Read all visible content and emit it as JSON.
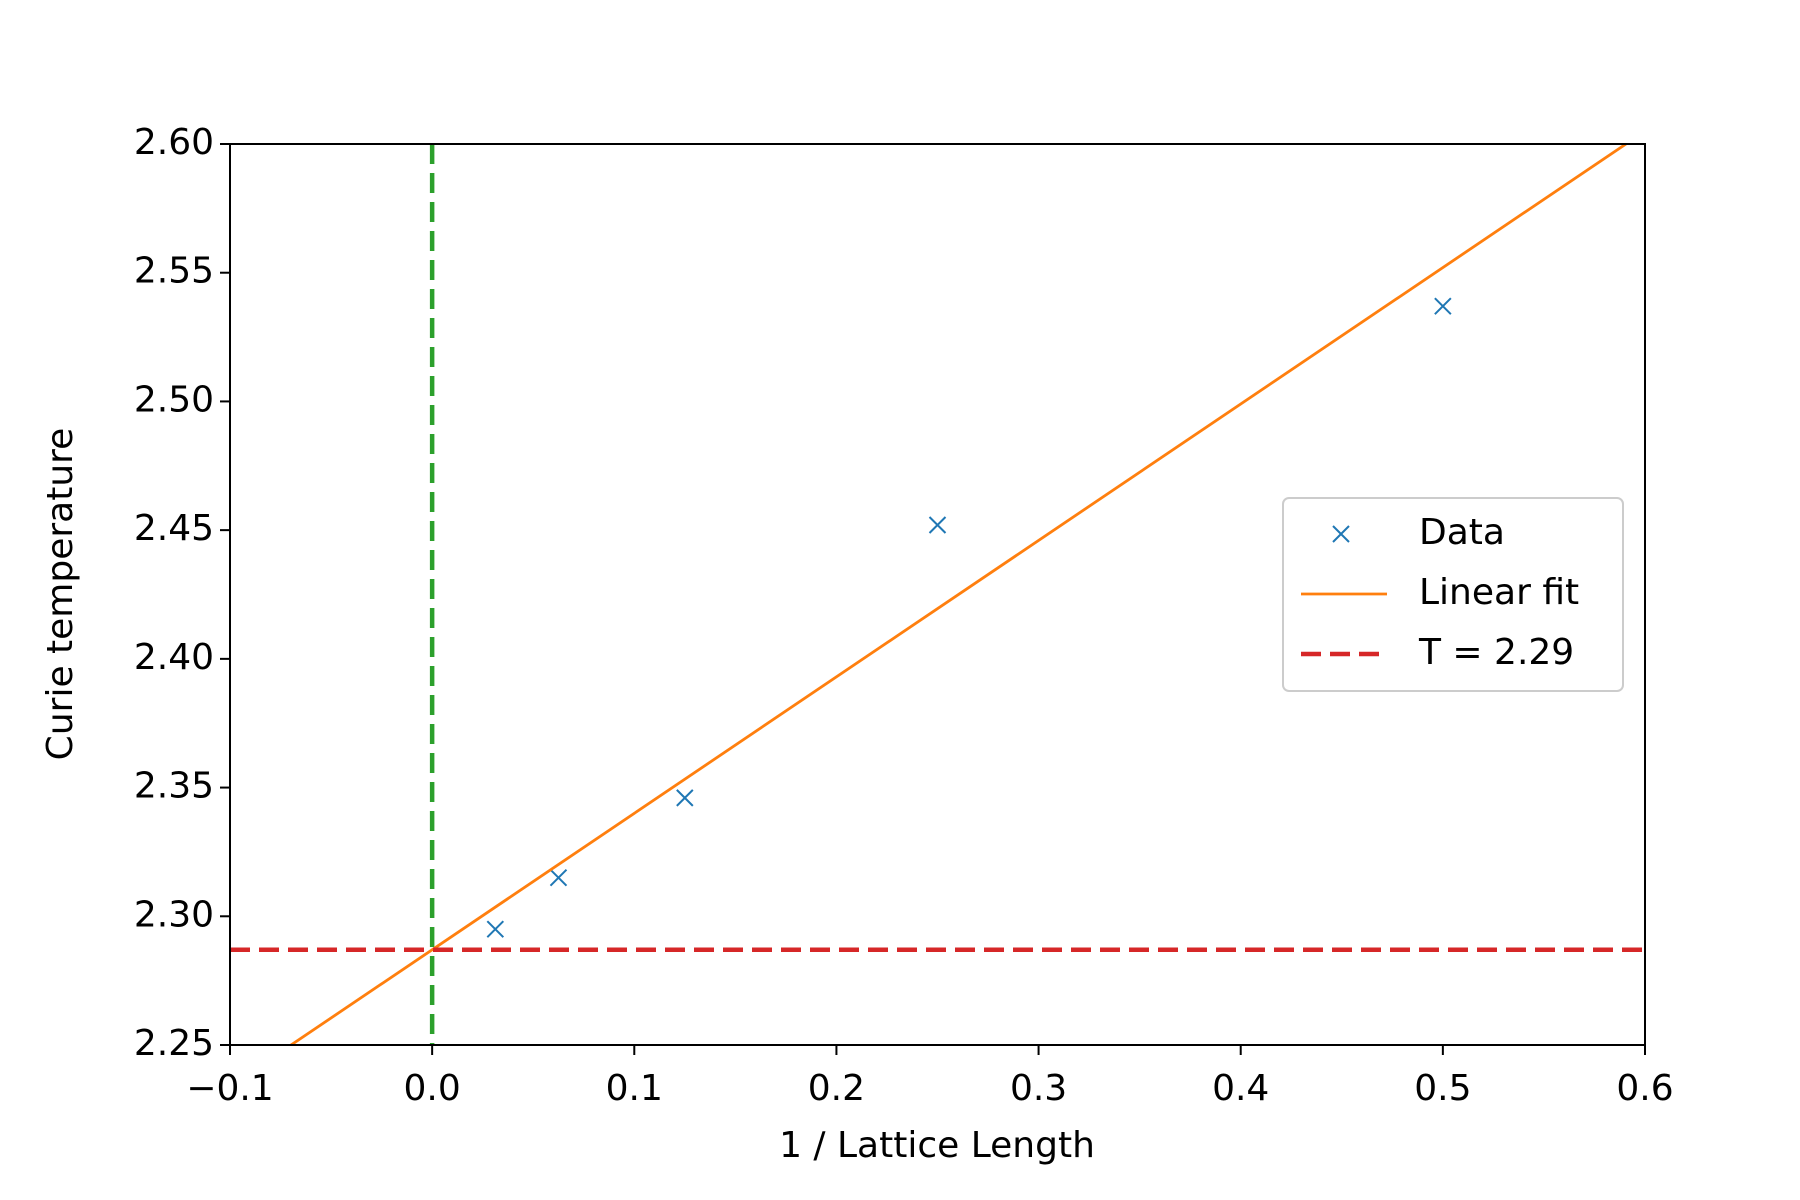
{
  "chart_data": {
    "type": "scatter",
    "x_label": "1 / Lattice Length",
    "y_label": "Curie temperature",
    "xlim": [
      -0.1,
      0.6
    ],
    "ylim": [
      2.25,
      2.6
    ],
    "xticks": [
      {
        "value": -0.1,
        "label": "−0.1"
      },
      {
        "value": 0,
        "label": "0.0"
      },
      0.1,
      0.2,
      0.3,
      0.4,
      0.5,
      0.6
    ],
    "yticks": [
      2.25,
      {
        "value": 2.3,
        "label": "2.30"
      },
      2.35,
      {
        "value": 2.4,
        "label": "2.40"
      },
      2.45,
      {
        "value": 2.5,
        "label": "2.50"
      },
      2.55,
      {
        "value": 2.6,
        "label": "2.60"
      }
    ],
    "legend": "center right",
    "series": [
      {
        "name": "Data",
        "style": "marker",
        "color": "#1f77b4",
        "x": [
          0.03125,
          0.0625,
          0.125,
          0.25,
          0.5
        ],
        "values": [
          2.295,
          2.315,
          2.346,
          2.452,
          2.537
        ]
      },
      {
        "name": "Linear fit",
        "style": "line",
        "color": "#ff7f0e",
        "x": [
          -0.1,
          0.6
        ],
        "values": [
          2.234,
          2.605
        ]
      },
      {
        "name": "T = 2.29",
        "style": "dashed",
        "color": "#d62728",
        "x": [
          -0.1,
          0.6
        ],
        "values": [
          2.287,
          2.287
        ]
      }
    ],
    "vlines": [
      {
        "x": 0,
        "color": "#2ca02c"
      }
    ]
  }
}
